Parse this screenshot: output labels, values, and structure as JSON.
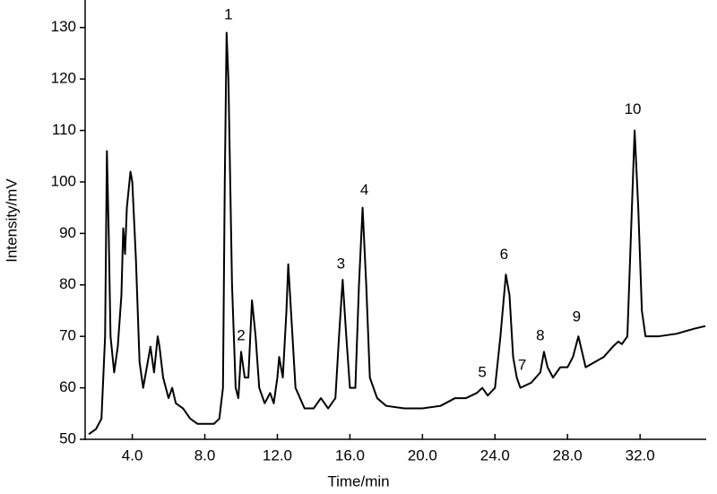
{
  "chart_data": {
    "type": "line",
    "xlabel": "Time/min",
    "ylabel": "Intensity/mV",
    "xlim": [
      1.4,
      35.6
    ],
    "ylim": [
      50,
      135
    ],
    "xticks": [
      {
        "value": 4,
        "label": "4.0"
      },
      {
        "value": 8,
        "label": "8.0"
      },
      {
        "value": 12,
        "label": "12.0"
      },
      {
        "value": 16,
        "label": "16.0"
      },
      {
        "value": 20,
        "label": "20.0"
      },
      {
        "value": 24,
        "label": "24.0"
      },
      {
        "value": 28,
        "label": "28.0"
      },
      {
        "value": 32,
        "label": "32.0"
      }
    ],
    "yticks": [
      50,
      60,
      70,
      80,
      90,
      100,
      110,
      120,
      130
    ],
    "series": [
      {
        "color": "#000000",
        "x": [
          1.6,
          2.0,
          2.3,
          2.5,
          2.6,
          2.7,
          2.8,
          3.0,
          3.2,
          3.4,
          3.5,
          3.6,
          3.7,
          3.9,
          4.0,
          4.2,
          4.4,
          4.6,
          4.9,
          5.0,
          5.2,
          5.4,
          5.5,
          5.7,
          6.0,
          6.2,
          6.4,
          6.8,
          7.2,
          7.6,
          8.0,
          8.5,
          8.8,
          9.0,
          9.1,
          9.2,
          9.3,
          9.5,
          9.7,
          9.85,
          10.0,
          10.2,
          10.4,
          10.6,
          10.8,
          11.0,
          11.3,
          11.6,
          11.8,
          12.0,
          12.1,
          12.3,
          12.5,
          12.6,
          12.8,
          13.0,
          13.5,
          14.0,
          14.4,
          14.8,
          15.2,
          15.4,
          15.6,
          15.8,
          16.0,
          16.3,
          16.5,
          16.7,
          16.9,
          17.1,
          17.5,
          18.0,
          19.0,
          20.0,
          21.0,
          21.8,
          22.4,
          23.0,
          23.3,
          23.6,
          24.0,
          24.3,
          24.6,
          24.8,
          25.0,
          25.2,
          25.4,
          26.0,
          26.5,
          26.7,
          26.9,
          27.2,
          27.6,
          28.0,
          28.3,
          28.6,
          28.8,
          29.0,
          29.5,
          30.0,
          30.5,
          30.8,
          31.0,
          31.3,
          31.5,
          31.7,
          31.9,
          32.1,
          32.3,
          33.0,
          34.0,
          35.0,
          35.6
        ],
        "values": [
          51,
          52,
          54,
          70,
          106,
          90,
          70,
          63,
          68,
          78,
          91,
          86,
          95,
          102,
          100,
          85,
          65,
          60,
          66,
          68,
          63,
          70,
          68,
          62,
          58,
          60,
          57,
          56,
          54,
          53,
          53,
          53,
          54,
          60,
          100,
          129,
          120,
          80,
          60,
          58,
          67,
          62,
          62,
          77,
          70,
          60,
          57,
          59,
          57,
          62,
          66,
          62,
          75,
          84,
          72,
          60,
          56,
          56,
          58,
          56,
          58,
          70,
          81,
          70,
          60,
          60,
          80,
          95,
          80,
          62,
          58,
          56.5,
          56,
          56,
          56.5,
          58,
          58,
          59,
          60,
          58.5,
          60,
          70,
          82,
          78,
          66,
          62,
          60,
          61,
          63,
          67,
          64,
          62,
          64,
          64,
          66,
          70,
          67,
          64,
          65,
          66,
          68,
          69,
          68.5,
          70,
          90,
          110,
          95,
          75,
          70,
          70,
          70.5,
          71.5,
          72
        ]
      }
    ],
    "annotations": [
      {
        "text": "1",
        "x": 9.3,
        "y": 132.4
      },
      {
        "text": "2",
        "x": 10.0,
        "y": 70
      },
      {
        "text": "3",
        "x": 15.5,
        "y": 84
      },
      {
        "text": "4",
        "x": 16.8,
        "y": 98.3
      },
      {
        "text": "5",
        "x": 23.3,
        "y": 62.9
      },
      {
        "text": "6",
        "x": 24.5,
        "y": 85.8
      },
      {
        "text": "7",
        "x": 25.5,
        "y": 64.3
      },
      {
        "text": "8",
        "x": 26.5,
        "y": 70
      },
      {
        "text": "9",
        "x": 28.5,
        "y": 73.7
      },
      {
        "text": "10",
        "x": 31.6,
        "y": 114
      }
    ]
  }
}
